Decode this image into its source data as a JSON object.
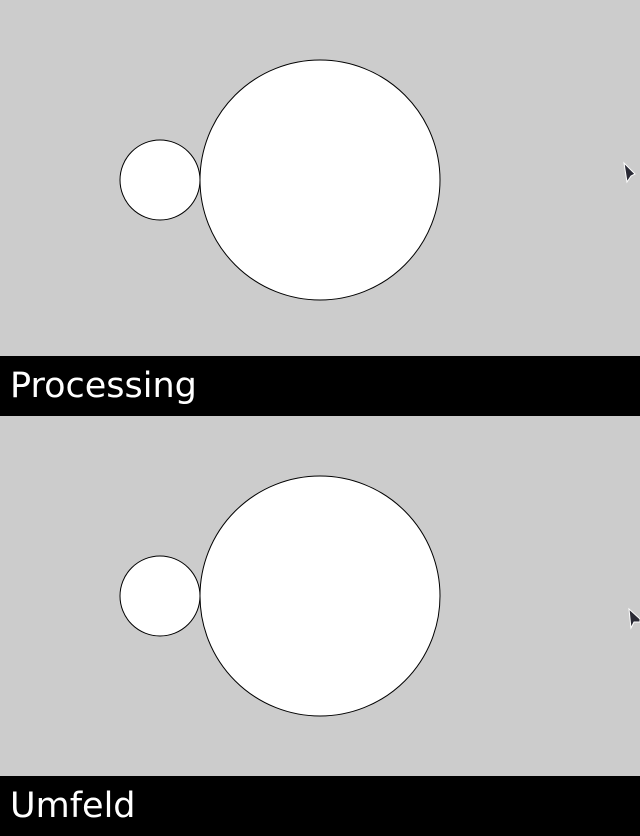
{
  "panels": [
    {
      "label": "Processing",
      "canvas_color": "#cccccc",
      "circle_fill": "#ffffff",
      "circle_stroke": "#000000"
    },
    {
      "label": "Umfeld",
      "canvas_color": "#cccccc",
      "circle_fill": "#ffffff",
      "circle_stroke": "#000000"
    }
  ],
  "cursor_icon": "mouse-pointer-icon"
}
